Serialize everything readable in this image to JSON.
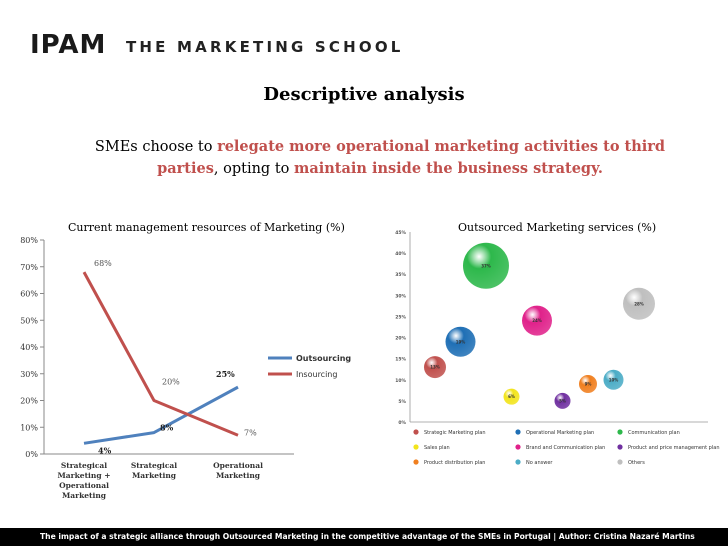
{
  "header": {
    "logo_mark": "IPAM",
    "logo_text": "THE MARKETING SCHOOL"
  },
  "title": "Descriptive analysis",
  "subtitle": {
    "p1": "SMEs choose to ",
    "p2": "relegate more operational marketing activities to third parties",
    "p3": ", opting to ",
    "p4": "maintain inside the business strategy."
  },
  "footer": "The  impact of a strategic alliance through Outsourced Marketing in the competitive advantage of the SMEs in Portugal   |   Author: Cristina Nazaré Martins",
  "chart_data": [
    {
      "type": "line",
      "title": "Current management resources of Marketing  (%)",
      "categories": [
        "Strategical Marketing + Operational Marketing",
        "Strategical Marketing",
        "Operational Marketing"
      ],
      "category_lines": [
        [
          "Strategical",
          "Marketing +",
          "Operational",
          "Marketing"
        ],
        [
          "Strategical",
          "Marketing"
        ],
        [
          "Operational",
          "Marketing"
        ]
      ],
      "ylim": [
        0,
        80
      ],
      "yticks": [
        "0%",
        "10%",
        "20%",
        "30%",
        "40%",
        "50%",
        "60%",
        "70%",
        "80%"
      ],
      "grid": false,
      "legend_position": "right",
      "series": [
        {
          "name": "Outsourcing",
          "color": "#4f81bd",
          "values": [
            4,
            8,
            25
          ],
          "labels": [
            "4%",
            "8%",
            "25%"
          ]
        },
        {
          "name": "Insourcing",
          "color": "#c0504d",
          "values": [
            68,
            20,
            7
          ],
          "labels": [
            "68%",
            "20%",
            "7%"
          ]
        }
      ]
    },
    {
      "type": "scatter",
      "title": "Outsourced Marketing services (%)",
      "ylim": [
        0,
        45
      ],
      "yticks": [
        "0%",
        "5%",
        "10%",
        "15%",
        "20%",
        "25%",
        "30%",
        "35%",
        "40%",
        "45%"
      ],
      "grid": false,
      "legend_position": "bottom",
      "series": [
        {
          "name": "Strategic Marketing plan",
          "color": "#c0504d",
          "x": 1,
          "y": 13,
          "size": 11,
          "label": "13%"
        },
        {
          "name": "Operational Marketing plan",
          "color": "#1f6fb5",
          "x": 2,
          "y": 19,
          "size": 15,
          "label": "19%"
        },
        {
          "name": "Communication  plan",
          "color": "#2db84b",
          "x": 3,
          "y": 37,
          "size": 23,
          "label": "37%"
        },
        {
          "name": "Sales plan",
          "color": "#f2e41c",
          "x": 4,
          "y": 6,
          "size": 8,
          "label": "6%"
        },
        {
          "name": "Brand and Communication  plan",
          "color": "#e0218a",
          "x": 5,
          "y": 24,
          "size": 15,
          "label": "24%"
        },
        {
          "name": "Product and price management plan",
          "color": "#7030a0",
          "x": 6,
          "y": 5,
          "size": 8,
          "label": "5%"
        },
        {
          "name": "Product distribution plan",
          "color": "#f07f1f",
          "x": 7,
          "y": 9,
          "size": 9,
          "label": "9%"
        },
        {
          "name": "No answer",
          "color": "#4bacc6",
          "x": 8,
          "y": 10,
          "size": 10,
          "label": "10%"
        },
        {
          "name": "Others",
          "color": "#bfbfbf",
          "x": 9,
          "y": 28,
          "size": 16,
          "label": "28%"
        }
      ]
    }
  ]
}
